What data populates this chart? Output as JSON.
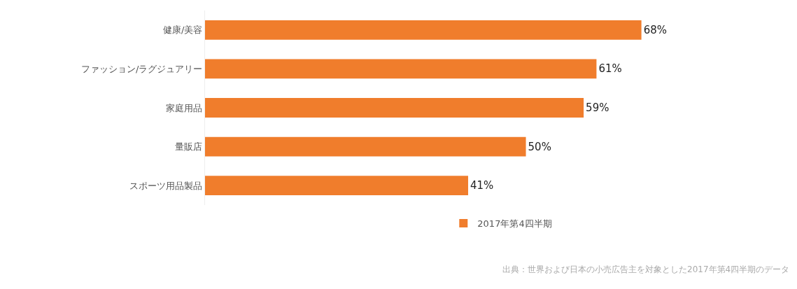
{
  "chart_data": {
    "type": "bar",
    "orientation": "horizontal",
    "categories": [
      "健康/美容",
      "ファッション/ラグジュアリー",
      "家庭用品",
      "量販店",
      "スポーツ用品製品"
    ],
    "series": [
      {
        "name": "2017年第4四半期",
        "color": "#f07d2c",
        "values": [
          68,
          61,
          59,
          50,
          41
        ],
        "value_labels": [
          "68%",
          "61%",
          "59%",
          "50%",
          "41%"
        ]
      }
    ],
    "tick_labels": "y",
    "legend": "bottom",
    "annotations": [
      "出典：世界および日本の小売広告主を対象とした2017年第4四半期のデータ"
    ]
  }
}
